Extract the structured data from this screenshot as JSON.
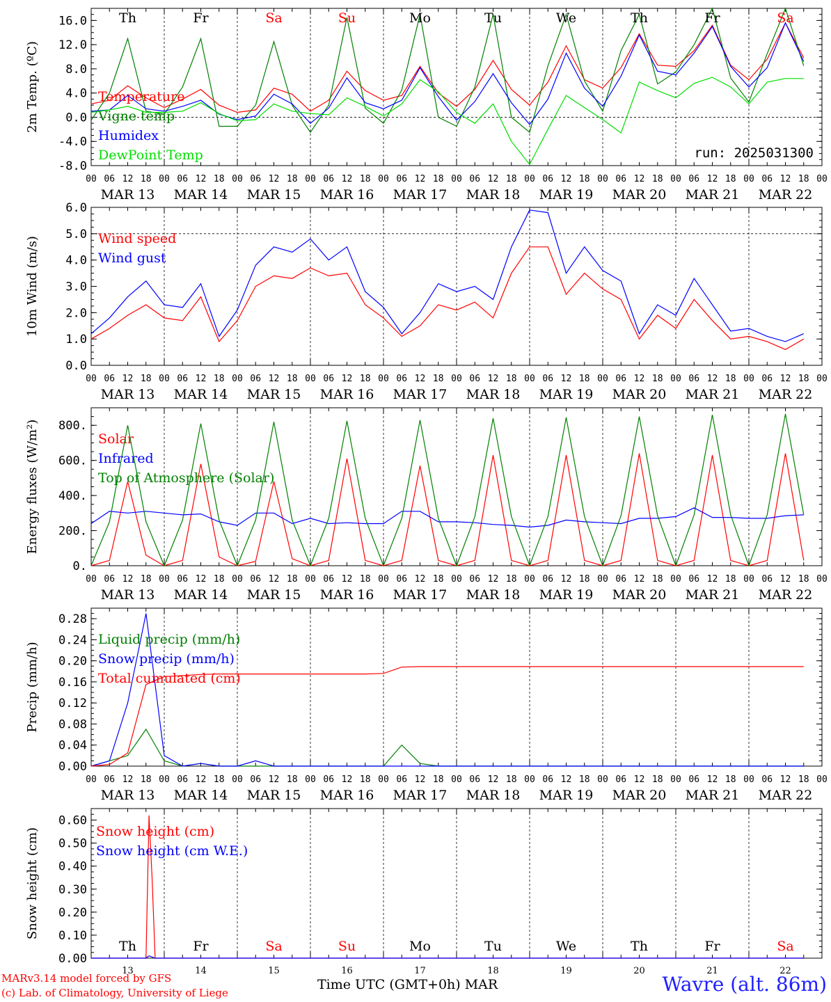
{
  "run_label": "run: 2025031300",
  "credit_line1": "MARv3.14 model forced by GFS",
  "credit_line2": "(c) Lab. of Climatology, University of Liege",
  "x_title": "Time UTC (GMT+0h) MAR",
  "station": "Wavre (alt. 86m)",
  "hour_ticks": [
    "00",
    "06",
    "12",
    "18"
  ],
  "date_labels": [
    "MAR 13",
    "MAR 14",
    "MAR 15",
    "MAR 16",
    "MAR 17",
    "MAR 18",
    "MAR 19",
    "MAR 20",
    "MAR 21",
    "MAR 22"
  ],
  "day_numbers": [
    "13",
    "14",
    "15",
    "16",
    "17",
    "18",
    "19",
    "20",
    "21",
    "22"
  ],
  "day_names": [
    {
      "name": "Th",
      "weekend": false
    },
    {
      "name": "Fr",
      "weekend": false
    },
    {
      "name": "Sa",
      "weekend": true
    },
    {
      "name": "Su",
      "weekend": true
    },
    {
      "name": "Mo",
      "weekend": false
    },
    {
      "name": "Tu",
      "weekend": false
    },
    {
      "name": "We",
      "weekend": false
    },
    {
      "name": "Th",
      "weekend": false
    },
    {
      "name": "Fr",
      "weekend": false
    },
    {
      "name": "Sa",
      "weekend": true
    }
  ],
  "colors": {
    "red": "#ff0000",
    "blue": "#0000ff",
    "green": "#008000",
    "lime": "#00dd00",
    "weekend": "#ff0000",
    "weekday": "#000000"
  },
  "chart_data": [
    {
      "type": "line",
      "ylabel": "2m Temp. (ºC)",
      "ylim": [
        -8,
        18
      ],
      "yticks": [
        -8,
        -4,
        0,
        4,
        8,
        12,
        16
      ],
      "ytick_labels": [
        "-8.0",
        "-4.0",
        "0.0",
        "4.0",
        "8.0",
        "12.0",
        "16.0"
      ],
      "ref_line": 0,
      "x": [
        0,
        6,
        12,
        18,
        24,
        30,
        36,
        42,
        48,
        54,
        60,
        66,
        72,
        78,
        84,
        90,
        96,
        102,
        108,
        114,
        120,
        126,
        132,
        138,
        144,
        150,
        156,
        162,
        168,
        174,
        180,
        186,
        192,
        198,
        204,
        210,
        216,
        222,
        228,
        234
      ],
      "series": [
        {
          "name": "Temperature",
          "color": "#ff0000",
          "values": [
            2.2,
            2.8,
            5.2,
            3.2,
            1.6,
            3.0,
            4.6,
            2.0,
            0.8,
            1.2,
            4.8,
            3.8,
            1.0,
            2.8,
            7.6,
            4.4,
            2.8,
            3.6,
            8.4,
            4.0,
            1.8,
            4.6,
            9.4,
            4.6,
            2.0,
            5.8,
            11.8,
            6.2,
            4.8,
            8.2,
            13.8,
            8.6,
            8.4,
            11.0,
            15.2,
            8.6,
            6.2,
            9.6,
            15.6,
            9.8
          ]
        },
        {
          "name": "Vigne temp",
          "color": "#008000",
          "values": [
            -0.5,
            4.0,
            13.0,
            1.0,
            0.5,
            5.0,
            13.0,
            -1.5,
            -1.5,
            2.0,
            12.5,
            2.0,
            -2.5,
            2.0,
            16.5,
            1.5,
            -1.0,
            4.5,
            17.0,
            0.0,
            -1.5,
            5.0,
            17.0,
            0.0,
            -2.5,
            8.5,
            17.0,
            6.0,
            1.0,
            11.0,
            17.0,
            5.5,
            7.5,
            12.0,
            18.0,
            6.5,
            2.5,
            10.5,
            18.0,
            8.5
          ]
        },
        {
          "name": "Humidex",
          "color": "#0000ff",
          "values": [
            1.0,
            1.2,
            3.6,
            1.4,
            1.0,
            1.8,
            2.8,
            0.5,
            -0.4,
            0.2,
            3.8,
            2.2,
            -1.0,
            1.5,
            6.5,
            2.4,
            1.4,
            2.8,
            8.2,
            3.4,
            -0.5,
            2.6,
            7.2,
            2.4,
            -1.2,
            3.0,
            10.6,
            4.8,
            1.8,
            6.8,
            13.6,
            7.6,
            7.0,
            10.6,
            15.0,
            8.4,
            5.0,
            8.2,
            15.6,
            9.2
          ]
        },
        {
          "name": "DewPoint Temp",
          "color": "#00dd00",
          "values": [
            0.8,
            1.2,
            1.8,
            0.8,
            0.8,
            1.0,
            2.4,
            0.6,
            -0.6,
            -0.4,
            2.2,
            1.0,
            0.6,
            0.4,
            3.2,
            1.8,
            0.2,
            2.2,
            6.2,
            4.2,
            0.8,
            -1.0,
            2.2,
            -4.0,
            -7.8,
            -2.0,
            3.6,
            1.6,
            -0.4,
            -2.6,
            5.8,
            4.4,
            3.2,
            5.6,
            6.6,
            5.0,
            2.2,
            5.8,
            6.4,
            6.4
          ]
        }
      ]
    },
    {
      "type": "line",
      "ylabel": "10m Wind (m/s)",
      "ylim": [
        0,
        6
      ],
      "yticks": [
        0,
        1,
        2,
        3,
        4,
        5,
        6
      ],
      "ytick_labels": [
        "0.0",
        "1.0",
        "2.0",
        "3.0",
        "4.0",
        "5.0",
        "6.0"
      ],
      "ref_line": 5,
      "x": [
        0,
        6,
        12,
        18,
        24,
        30,
        36,
        42,
        48,
        54,
        60,
        66,
        72,
        78,
        84,
        90,
        96,
        102,
        108,
        114,
        120,
        126,
        132,
        138,
        144,
        150,
        156,
        162,
        168,
        174,
        180,
        186,
        192,
        198,
        204,
        210,
        216,
        222,
        228,
        234
      ],
      "series": [
        {
          "name": "Wind speed",
          "color": "#ff0000",
          "values": [
            1.0,
            1.4,
            1.9,
            2.3,
            1.8,
            1.7,
            2.6,
            0.9,
            1.7,
            3.0,
            3.4,
            3.3,
            3.7,
            3.4,
            3.5,
            2.3,
            1.8,
            1.1,
            1.5,
            2.3,
            2.1,
            2.4,
            1.8,
            3.5,
            4.5,
            4.5,
            2.7,
            3.5,
            2.9,
            2.5,
            1.0,
            1.9,
            1.4,
            2.5,
            1.7,
            1.0,
            1.1,
            0.9,
            0.6,
            1.0
          ]
        },
        {
          "name": "Wind gust",
          "color": "#0000ff",
          "values": [
            1.2,
            1.8,
            2.6,
            3.2,
            2.3,
            2.2,
            3.1,
            1.1,
            2.1,
            3.8,
            4.5,
            4.3,
            4.8,
            4.0,
            4.5,
            2.8,
            2.2,
            1.2,
            2.0,
            3.1,
            2.8,
            3.0,
            2.5,
            4.5,
            5.9,
            5.8,
            3.5,
            4.5,
            3.6,
            3.2,
            1.2,
            2.3,
            1.9,
            3.3,
            2.3,
            1.3,
            1.4,
            1.1,
            0.9,
            1.2
          ]
        }
      ]
    },
    {
      "type": "line",
      "ylabel": "Energy fluxes (W/m²)",
      "ylim": [
        0,
        900
      ],
      "yticks": [
        0,
        200,
        400,
        600,
        800
      ],
      "ytick_labels": [
        "0.",
        "200.",
        "400.",
        "600.",
        "800."
      ],
      "x": [
        0,
        6,
        12,
        18,
        24,
        30,
        36,
        42,
        48,
        54,
        60,
        66,
        72,
        78,
        84,
        90,
        96,
        102,
        108,
        114,
        120,
        126,
        132,
        138,
        144,
        150,
        156,
        162,
        168,
        174,
        180,
        186,
        192,
        198,
        204,
        210,
        216,
        222,
        228,
        234
      ],
      "series": [
        {
          "name": "Solar",
          "color": "#ff0000",
          "values": [
            0,
            30,
            480,
            60,
            0,
            30,
            580,
            50,
            0,
            25,
            480,
            40,
            0,
            30,
            610,
            30,
            0,
            30,
            570,
            30,
            0,
            30,
            630,
            30,
            0,
            30,
            630,
            30,
            0,
            30,
            640,
            30,
            0,
            30,
            630,
            30,
            0,
            30,
            640,
            30
          ]
        },
        {
          "name": "Infrared",
          "color": "#0000ff",
          "values": [
            240,
            310,
            300,
            310,
            300,
            290,
            295,
            250,
            230,
            300,
            300,
            240,
            270,
            240,
            245,
            240,
            240,
            310,
            310,
            250,
            250,
            245,
            235,
            230,
            220,
            230,
            260,
            250,
            245,
            240,
            270,
            270,
            280,
            330,
            275,
            275,
            270,
            270,
            285,
            290
          ]
        },
        {
          "name": "Top of Atmosphere (Solar)",
          "color": "#008000",
          "values": [
            0,
            250,
            800,
            250,
            0,
            260,
            810,
            260,
            0,
            260,
            820,
            260,
            0,
            270,
            825,
            270,
            0,
            270,
            830,
            270,
            0,
            280,
            840,
            280,
            0,
            280,
            845,
            280,
            0,
            285,
            850,
            285,
            0,
            290,
            860,
            290,
            0,
            290,
            865,
            290
          ]
        }
      ]
    },
    {
      "type": "line",
      "ylabel": "Precip (mm/h)",
      "ylim": [
        0,
        0.3
      ],
      "yticks": [
        0,
        0.04,
        0.08,
        0.12,
        0.16,
        0.2,
        0.24,
        0.28
      ],
      "ytick_labels": [
        "0.00",
        "0.04",
        "0.08",
        "0.12",
        "0.16",
        "0.20",
        "0.24",
        "0.28"
      ],
      "x": [
        0,
        6,
        12,
        18,
        24,
        30,
        36,
        42,
        48,
        54,
        60,
        66,
        72,
        78,
        84,
        90,
        96,
        102,
        108,
        114,
        120,
        126,
        132,
        138,
        144,
        150,
        156,
        162,
        168,
        174,
        180,
        186,
        192,
        198,
        204,
        210,
        216,
        222,
        228,
        234
      ],
      "series": [
        {
          "name": "Liquid precip (mm/h)",
          "color": "#008000",
          "values": [
            0,
            0.01,
            0.02,
            0.07,
            0.01,
            0,
            0.005,
            0,
            0,
            0,
            0,
            0,
            0,
            0,
            0,
            0,
            0,
            0.04,
            0.005,
            0,
            0,
            0,
            0,
            0,
            0,
            0,
            0,
            0,
            0,
            0,
            0,
            0,
            0,
            0,
            0,
            0,
            0,
            0,
            0,
            0
          ]
        },
        {
          "name": "Snow precip (mm/h)",
          "color": "#0000ff",
          "values": [
            0,
            0.01,
            0.12,
            0.29,
            0.02,
            0,
            0.005,
            0,
            0,
            0.01,
            0,
            0,
            0,
            0,
            0,
            0,
            0,
            0,
            0,
            0,
            0,
            0,
            0,
            0,
            0,
            0,
            0,
            0,
            0,
            0,
            0,
            0,
            0,
            0,
            0,
            0,
            0,
            0,
            0,
            0
          ]
        },
        {
          "name": "Total cumulated (cm)",
          "color": "#ff0000",
          "values": [
            0,
            0.003,
            0.025,
            0.155,
            0.17,
            0.172,
            0.174,
            0.175,
            0.175,
            0.175,
            0.175,
            0.175,
            0.175,
            0.175,
            0.175,
            0.175,
            0.176,
            0.188,
            0.189,
            0.189,
            0.189,
            0.189,
            0.189,
            0.189,
            0.189,
            0.189,
            0.189,
            0.189,
            0.189,
            0.189,
            0.189,
            0.189,
            0.189,
            0.189,
            0.189,
            0.189,
            0.189,
            0.189,
            0.189,
            0.189
          ]
        }
      ]
    },
    {
      "type": "line",
      "ylabel": "Snow height (cm)",
      "ylim": [
        0,
        0.65
      ],
      "yticks": [
        0,
        0.1,
        0.2,
        0.3,
        0.4,
        0.5,
        0.6
      ],
      "ytick_labels": [
        "0.00",
        "0.10",
        "0.20",
        "0.30",
        "0.40",
        "0.50",
        "0.60"
      ],
      "x": [
        0,
        12,
        18,
        19,
        20,
        21,
        24,
        36,
        48,
        96,
        144,
        192,
        234
      ],
      "series": [
        {
          "name": "Snow height (cm)",
          "color": "#ff0000",
          "values": [
            0,
            0,
            0,
            0.62,
            0.35,
            0,
            0,
            0,
            0,
            0,
            0,
            0,
            0
          ]
        },
        {
          "name": "Snow height (cm W.E.)",
          "color": "#0000ff",
          "values": [
            0,
            0,
            0,
            0.01,
            0.005,
            0,
            0,
            0,
            0,
            0,
            0,
            0,
            0
          ]
        }
      ]
    }
  ]
}
